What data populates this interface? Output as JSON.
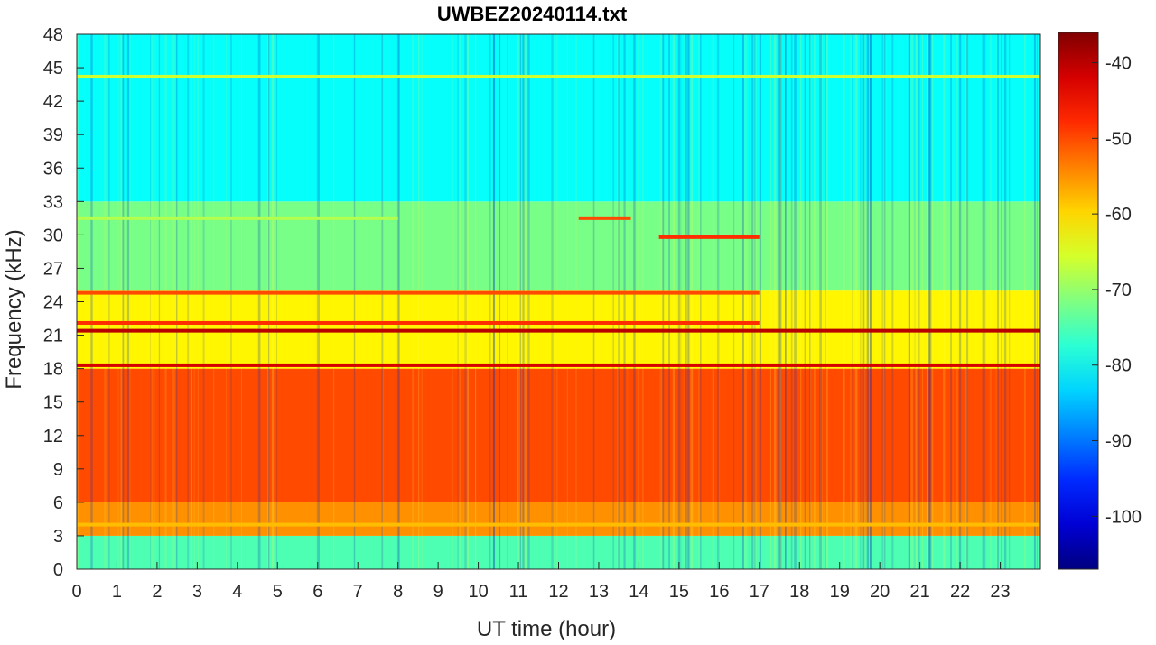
{
  "chart_data": {
    "type": "heatmap",
    "title": "UWBEZ20240114.txt",
    "xlabel": "UT time (hour)",
    "ylabel": "Frequency (kHz)",
    "xlim": [
      0,
      24
    ],
    "ylim": [
      0,
      48
    ],
    "x_ticks": [
      "0",
      "1",
      "2",
      "3",
      "4",
      "5",
      "6",
      "7",
      "8",
      "9",
      "10",
      "11",
      "12",
      "13",
      "14",
      "15",
      "16",
      "17",
      "18",
      "19",
      "20",
      "21",
      "22",
      "23"
    ],
    "y_ticks": [
      "0",
      "3",
      "6",
      "9",
      "12",
      "15",
      "18",
      "21",
      "24",
      "27",
      "30",
      "33",
      "36",
      "39",
      "42",
      "45",
      "48"
    ],
    "colorbar": {
      "range": [
        -107,
        -36
      ],
      "ticks": [
        "-100",
        "-90",
        "-80",
        "-70",
        "-60",
        "-50",
        "-40"
      ],
      "colormap": "jet"
    },
    "background_levels": [
      {
        "freq_range_khz": [
          0,
          3
        ],
        "level_db": -75
      },
      {
        "freq_range_khz": [
          3,
          6
        ],
        "level_db": -55
      },
      {
        "freq_range_khz": [
          6,
          18
        ],
        "level_db": -50
      },
      {
        "freq_range_khz": [
          18,
          25
        ],
        "level_db": -62
      },
      {
        "freq_range_khz": [
          25,
          33
        ],
        "level_db": -72
      },
      {
        "freq_range_khz": [
          33,
          48
        ],
        "level_db": -80
      }
    ],
    "narrowband_lines": [
      {
        "freq_khz": 18.3,
        "t_start": 0,
        "t_end": 24,
        "level_db": -42
      },
      {
        "freq_khz": 21.4,
        "t_start": 0,
        "t_end": 24,
        "level_db": -40
      },
      {
        "freq_khz": 22.1,
        "t_start": 0,
        "t_end": 17,
        "level_db": -48
      },
      {
        "freq_khz": 24.8,
        "t_start": 0,
        "t_end": 17,
        "level_db": -50
      },
      {
        "freq_khz": 4.0,
        "t_start": 0,
        "t_end": 24,
        "level_db": -58
      },
      {
        "freq_khz": 29.8,
        "t_start": 14.5,
        "t_end": 17,
        "level_db": -48
      },
      {
        "freq_khz": 31.5,
        "t_start": 12.5,
        "t_end": 13.8,
        "level_db": -50
      },
      {
        "freq_khz": 44.2,
        "t_start": 0,
        "t_end": 24,
        "level_db": -66
      },
      {
        "freq_khz": 31.5,
        "t_start": 0,
        "t_end": 8,
        "level_db": -68
      }
    ]
  }
}
